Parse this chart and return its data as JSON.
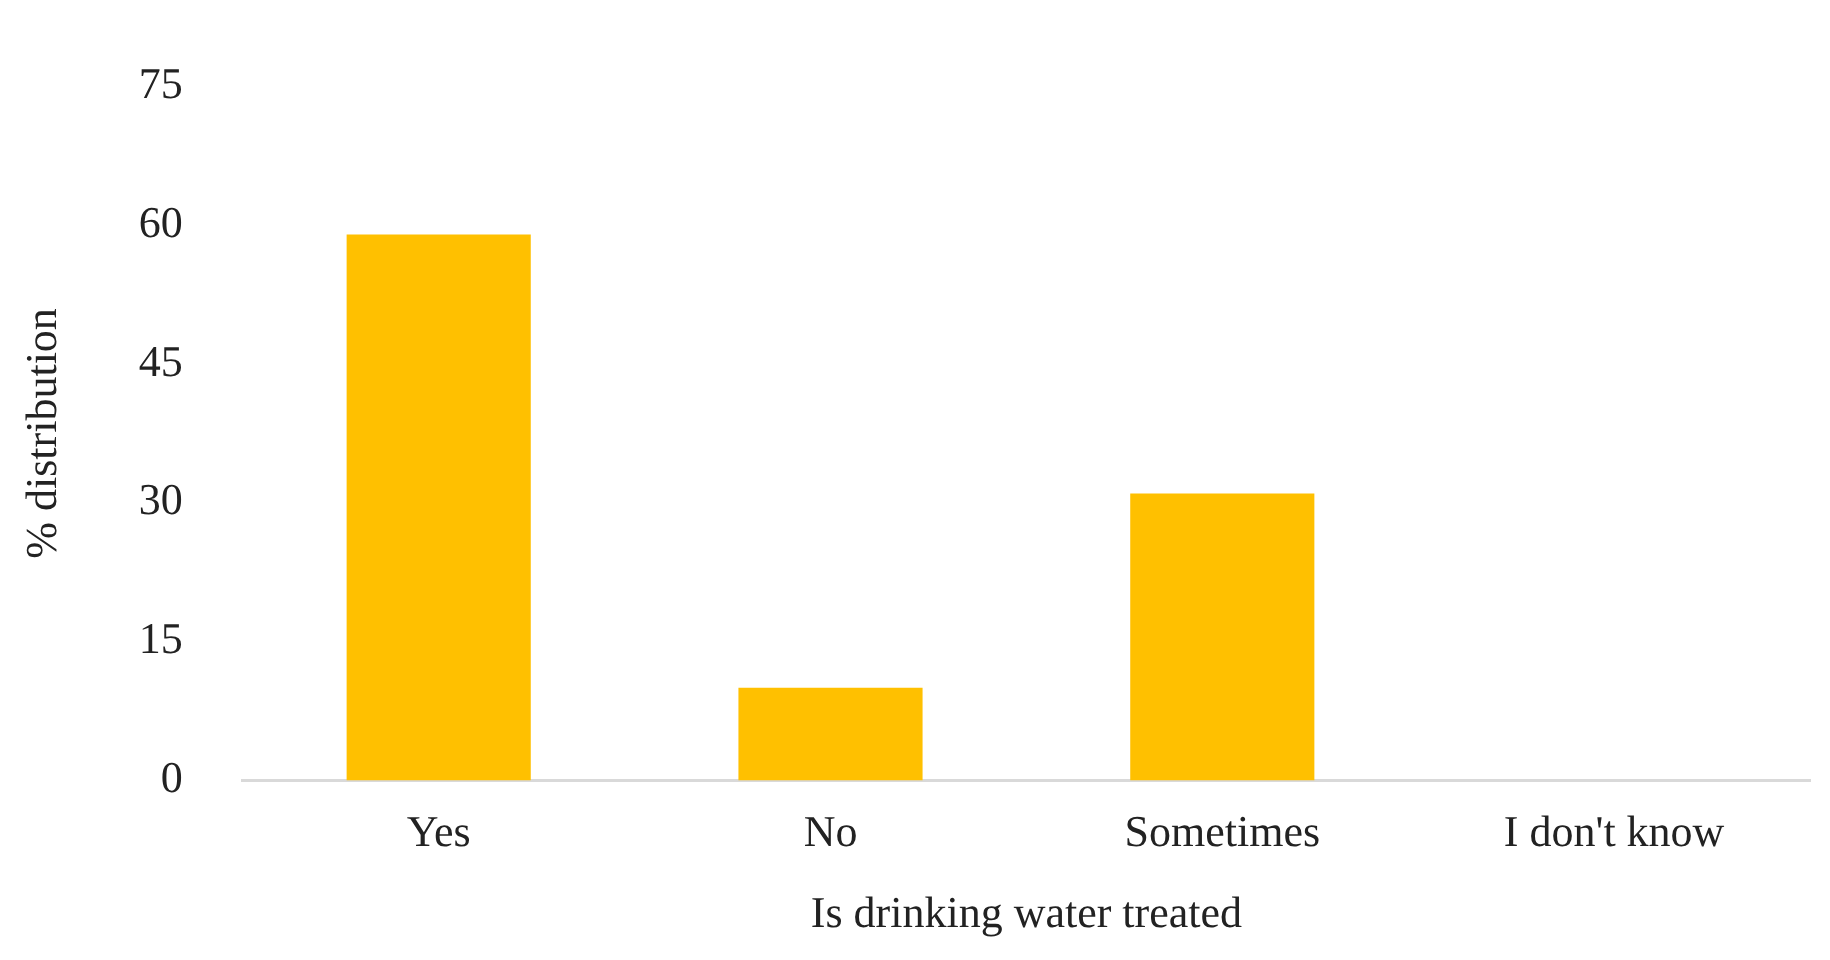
{
  "chart_data": {
    "type": "bar",
    "xlabel": "Is drinking water treated",
    "ylabel": "% distribution",
    "categories": [
      "Yes",
      "No",
      "Sometimes",
      "I don't know"
    ],
    "values": [
      59,
      10,
      31,
      0
    ],
    "color": "#ffc000",
    "ylim": [
      0,
      75
    ],
    "yticks": [
      0,
      15,
      30,
      45,
      60,
      75
    ],
    "grid": false,
    "legend": false
  }
}
